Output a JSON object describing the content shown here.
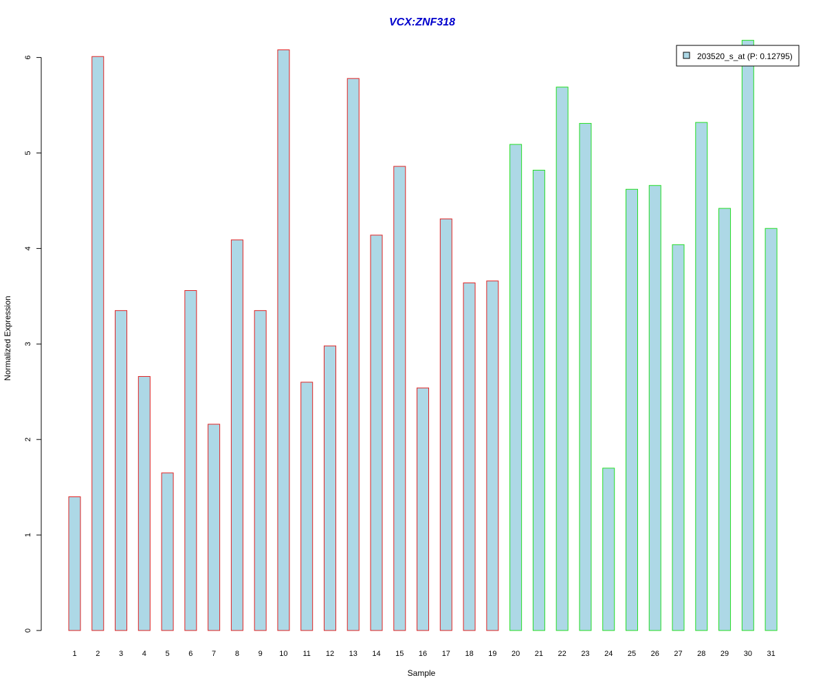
{
  "chart_data": {
    "type": "bar",
    "title": "VCX:ZNF318",
    "xlabel": "Sample",
    "ylabel": "Normalized Expression",
    "ylim": [
      0,
      6.2
    ],
    "yticks": [
      0,
      1,
      2,
      3,
      4,
      5,
      6
    ],
    "grid": false,
    "legend_position": "top-right",
    "categories": [
      "1",
      "2",
      "3",
      "4",
      "5",
      "6",
      "7",
      "8",
      "9",
      "10",
      "11",
      "12",
      "13",
      "14",
      "15",
      "16",
      "17",
      "18",
      "19",
      "20",
      "21",
      "22",
      "23",
      "24",
      "25",
      "26",
      "27",
      "28",
      "29",
      "30",
      "31"
    ],
    "series": [
      {
        "name": "203520_s_at (P: 0.12795)",
        "values": [
          1.4,
          6.01,
          3.35,
          2.66,
          1.65,
          3.56,
          2.16,
          4.09,
          3.35,
          6.08,
          2.6,
          2.98,
          5.78,
          4.14,
          4.86,
          2.54,
          4.31,
          3.64,
          3.66,
          5.09,
          4.82,
          5.69,
          5.31,
          1.7,
          4.62,
          4.66,
          4.04,
          5.32,
          4.42,
          6.18,
          4.21
        ],
        "groups": [
          1,
          1,
          1,
          1,
          1,
          1,
          1,
          1,
          1,
          1,
          1,
          1,
          1,
          1,
          1,
          1,
          1,
          1,
          1,
          2,
          2,
          2,
          2,
          2,
          2,
          2,
          2,
          2,
          2,
          2,
          2
        ]
      }
    ],
    "colors": {
      "title": "#0000cc",
      "fill": "#add8e6",
      "group1_border": "#e02020",
      "group2_border": "#22dd22",
      "axis": "#000000"
    }
  }
}
